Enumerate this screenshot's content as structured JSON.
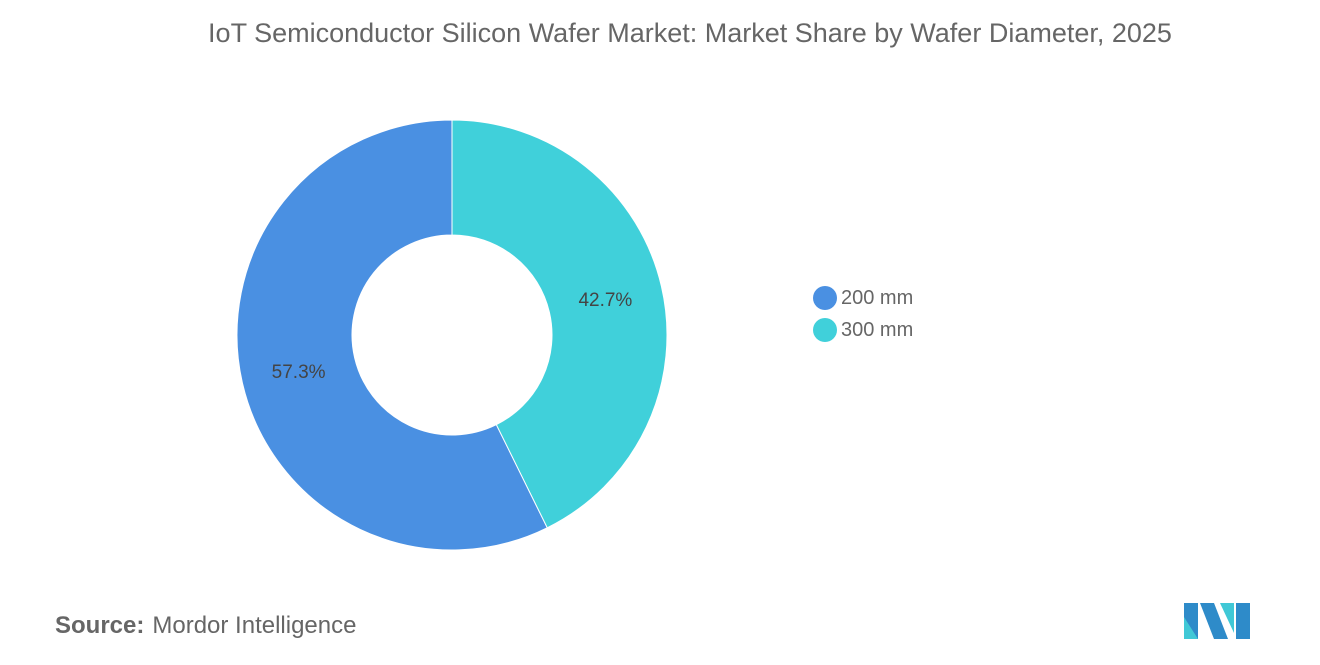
{
  "chart_data": {
    "type": "pie",
    "title": "IoT Semiconductor Silicon Wafer Market: Market Share by Wafer Diameter, 2025",
    "categories": [
      "200 mm",
      "300 mm"
    ],
    "values": [
      57.3,
      42.7
    ],
    "labels": [
      "57.3%",
      "42.7%"
    ],
    "colors": [
      "#4a90e2",
      "#40d0da"
    ],
    "donut": true,
    "legend": "right"
  },
  "source": {
    "label": "Source:",
    "value": "Mordor Intelligence"
  },
  "logo": {
    "text": "Mordor Intelligence logo"
  }
}
